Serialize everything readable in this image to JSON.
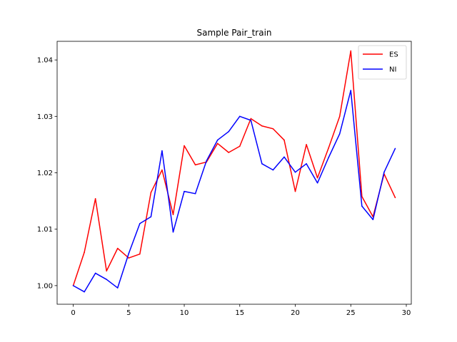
{
  "chart_data": {
    "type": "line",
    "title": "Sample Pair_train",
    "xlabel": "",
    "ylabel": "",
    "xlim": [
      -1.45,
      30.45
    ],
    "ylim": [
      0.9967,
      1.0433
    ],
    "xticks": [
      0,
      5,
      10,
      15,
      20,
      25,
      30
    ],
    "yticks": [
      1.0,
      1.01,
      1.02,
      1.03,
      1.04
    ],
    "ytick_labels": [
      "1.00",
      "1.01",
      "1.02",
      "1.03",
      "1.04"
    ],
    "grid": false,
    "legend": "top-right",
    "x": [
      0,
      1,
      2,
      3,
      4,
      5,
      6,
      7,
      8,
      9,
      10,
      11,
      12,
      13,
      14,
      15,
      16,
      17,
      18,
      19,
      20,
      21,
      22,
      23,
      24,
      25,
      26,
      27,
      28,
      29
    ],
    "series": [
      {
        "name": "ES",
        "color": "#ff0000",
        "values": [
          1.0,
          1.0059,
          1.0154,
          1.0026,
          1.0066,
          1.0049,
          1.0056,
          1.0165,
          1.0205,
          1.0126,
          1.0248,
          1.0214,
          1.0219,
          1.0252,
          1.0236,
          1.0247,
          1.0296,
          1.0283,
          1.0278,
          1.0258,
          1.0167,
          1.025,
          1.0191,
          1.0244,
          1.03,
          1.0416,
          1.0158,
          1.0122,
          1.0198,
          1.0156
        ]
      },
      {
        "name": "NI",
        "color": "#0000ff",
        "values": [
          1.0,
          0.9989,
          1.0022,
          1.0011,
          0.9996,
          1.0057,
          1.011,
          1.0122,
          1.0239,
          1.0095,
          1.0167,
          1.0163,
          1.0221,
          1.0258,
          1.0273,
          1.03,
          1.0293,
          1.0216,
          1.0205,
          1.0228,
          1.0201,
          1.0216,
          1.0182,
          1.0227,
          1.0269,
          1.0346,
          1.0141,
          1.0117,
          1.0201,
          1.0243
        ]
      }
    ]
  }
}
